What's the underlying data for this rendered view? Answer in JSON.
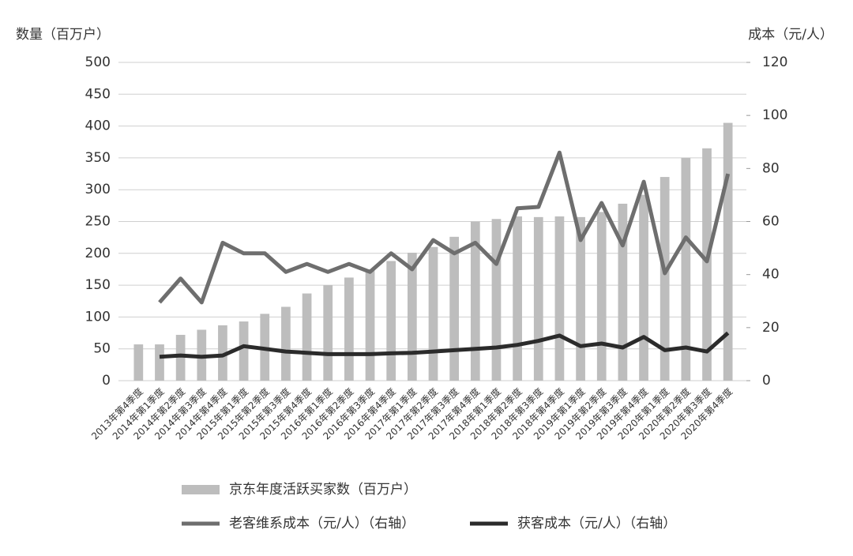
{
  "chart_data": {
    "type": "bar",
    "y_label": "数量（百万户）",
    "y2_label": "成本（元/人）",
    "categories": [
      "2013年第4季度",
      "2014年第1季度",
      "2014年第2季度",
      "2014年第3季度",
      "2014年第4季度",
      "2015年第1季度",
      "2015年第2季度",
      "2015年第3季度",
      "2015年第4季度",
      "2016年第1季度",
      "2016年第2季度",
      "2016年第3季度",
      "2016年第4季度",
      "2017年第1季度",
      "2017年第2季度",
      "2017年第3季度",
      "2017年第4季度",
      "2018年第1季度",
      "2018年第2季度",
      "2018年第3季度",
      "2018年第4季度",
      "2019年第1季度",
      "2019年第2季度",
      "2019年第3季度",
      "2019年第4季度",
      "2020年第1季度",
      "2020年第2季度",
      "2020年第3季度",
      "2020年第4季度"
    ],
    "series": [
      {
        "name": "京东年度活跃买家数（百万户）",
        "type": "bar",
        "color": "#bdbdbd",
        "values": [
          57,
          57,
          72,
          80,
          87,
          93,
          105,
          116,
          137,
          150,
          162,
          175,
          188,
          201,
          210,
          226,
          250,
          254,
          258,
          257,
          258,
          257,
          265,
          278,
          292,
          320,
          350,
          365,
          405
        ]
      },
      {
        "name": "老客维系成本（元/人）（右轴）",
        "type": "line",
        "axis": "y2",
        "color": "#6e6e6e",
        "values": [
          null,
          29.5,
          38.5,
          29.5,
          52,
          48,
          48,
          41,
          44,
          41,
          44,
          41,
          48,
          42,
          53,
          48,
          52,
          44,
          65,
          65.5,
          86,
          53,
          67,
          51,
          75,
          40.5,
          54,
          45,
          78
        ]
      },
      {
        "name": "获客成本（元/人）（右轴）",
        "type": "line",
        "axis": "y2",
        "color": "#2b2b2b",
        "values": [
          null,
          9,
          9.5,
          9,
          9.5,
          13,
          12,
          11,
          10.5,
          10,
          10,
          10,
          10.3,
          10.5,
          11,
          11.5,
          12,
          12.5,
          13.5,
          15,
          17,
          13,
          14,
          12.5,
          16.5,
          11.5,
          12.5,
          11,
          18
        ]
      }
    ],
    "ylim": [
      0,
      500
    ],
    "yticks": [
      0,
      50,
      100,
      150,
      200,
      250,
      300,
      350,
      400,
      450,
      500
    ],
    "y2lim": [
      0,
      120
    ],
    "y2ticks": [
      0,
      20,
      40,
      60,
      80,
      100,
      120
    ],
    "grid": true
  }
}
